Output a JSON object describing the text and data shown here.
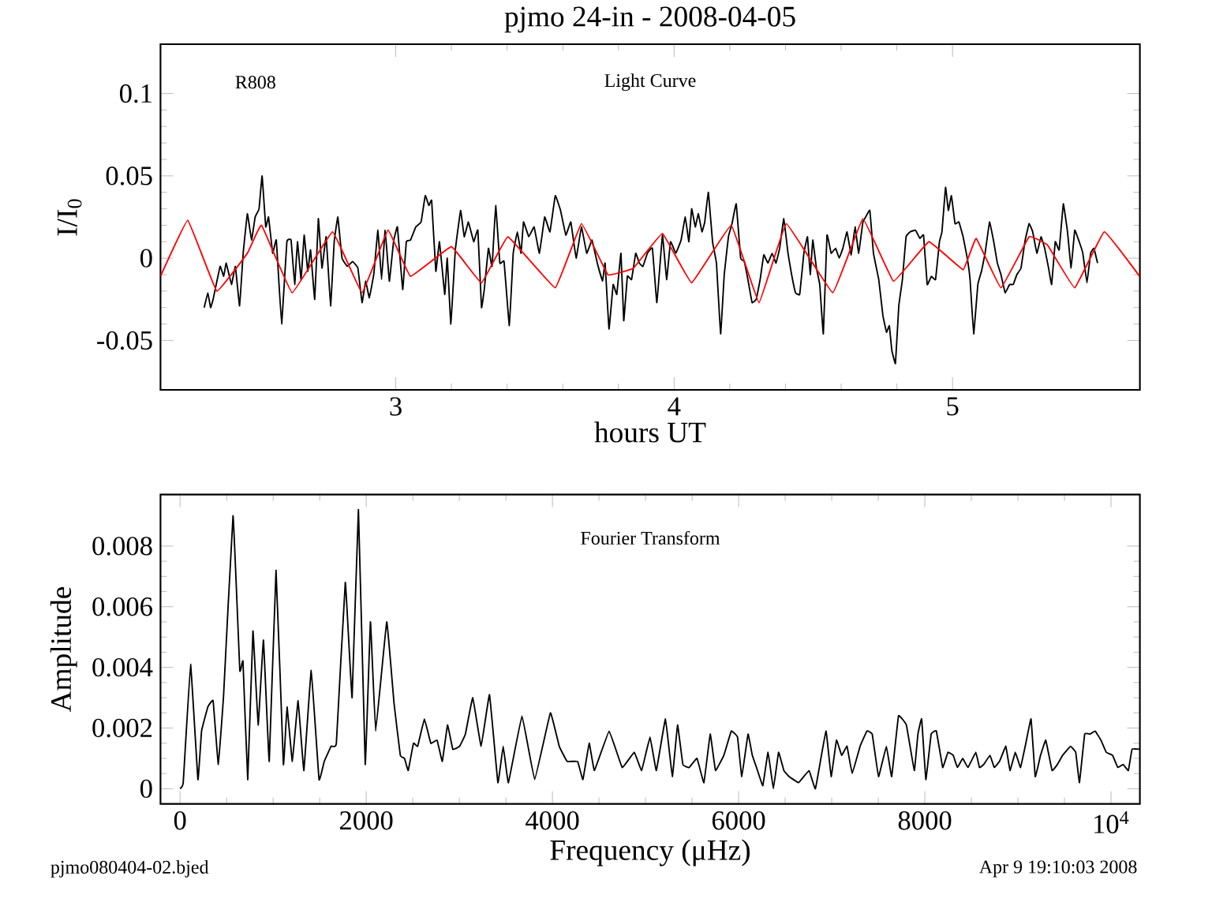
{
  "chart_data": [
    {
      "type": "line",
      "title": "pjmo 24-in - 2008-04-05",
      "xlabel": "hours UT",
      "ylabel": "I/I$_{0}$",
      "xlim": [
        2.155,
        5.673
      ],
      "ylim": [
        -0.08,
        0.13
      ],
      "xticks": [
        3,
        4,
        5
      ],
      "yticks": [
        -0.05,
        0,
        0.05,
        0.1
      ],
      "annotations": [
        "R808",
        "Light Curve"
      ],
      "series": [
        {
          "color": "#000000",
          "x": [
            2.312,
            2.325,
            2.335,
            2.344,
            2.369,
            2.382,
            2.391,
            2.41,
            2.424,
            2.439,
            2.452,
            2.467,
            2.482,
            2.495,
            2.509,
            2.52,
            2.533,
            2.543,
            2.558,
            2.571,
            2.59,
            2.609,
            2.624,
            2.637,
            2.647,
            2.66,
            2.671,
            2.684,
            2.694,
            2.709,
            2.722,
            2.735,
            2.75,
            2.766,
            2.779,
            2.792,
            2.807,
            2.826,
            2.845,
            2.864,
            2.879,
            2.892,
            2.905,
            2.921,
            2.936,
            2.949,
            2.962,
            2.977,
            2.992,
            3.006,
            3.025,
            3.038,
            3.053,
            3.072,
            3.091,
            3.106,
            3.119,
            3.129,
            3.144,
            3.157,
            3.176,
            3.185,
            3.198,
            3.214,
            3.233,
            3.246,
            3.261,
            3.28,
            3.295,
            3.308,
            3.318,
            3.333,
            3.346,
            3.359,
            3.374,
            3.389,
            3.408,
            3.422,
            3.437,
            3.45,
            3.459,
            3.478,
            3.497,
            3.516,
            3.535,
            3.554,
            3.573,
            3.592,
            3.611,
            3.629,
            3.648,
            3.667,
            3.686,
            3.705,
            3.724,
            3.743,
            3.752,
            3.766,
            3.781,
            3.794,
            3.809,
            3.819,
            3.832,
            3.847,
            3.862,
            3.875,
            3.888,
            3.904,
            3.922,
            3.938,
            3.958,
            3.973,
            3.987,
            4.006,
            4.025,
            4.04,
            4.053,
            4.063,
            4.076,
            4.087,
            4.1,
            4.11,
            4.123,
            4.138,
            4.152,
            4.167,
            4.18,
            4.195,
            4.208,
            4.223,
            4.239,
            4.252,
            4.265,
            4.28,
            4.295,
            4.309,
            4.322,
            4.337,
            4.352,
            4.366,
            4.379,
            4.394,
            4.409,
            4.422,
            4.436,
            4.451,
            4.466,
            4.479,
            4.489,
            4.498,
            4.511,
            4.523,
            4.536,
            4.549,
            4.564,
            4.58,
            4.593,
            4.606,
            4.621,
            4.636,
            4.65,
            4.663,
            4.678,
            4.688,
            4.703,
            4.716,
            4.735,
            4.75,
            4.763,
            4.773,
            4.782,
            4.795,
            4.807,
            4.82,
            4.833,
            4.848,
            4.867,
            4.883,
            4.896,
            4.909,
            4.924,
            4.939,
            4.953,
            4.962,
            4.975,
            4.985,
            4.996,
            5.009,
            5.023,
            5.038,
            5.053,
            5.063,
            5.076,
            5.091,
            5.104,
            5.117,
            5.133,
            5.148,
            5.161,
            5.174,
            5.189,
            5.205,
            5.218,
            5.231,
            5.246,
            5.261,
            5.275,
            5.288,
            5.303,
            5.318,
            5.331,
            5.345,
            5.356,
            5.369,
            5.383,
            5.398,
            5.413,
            5.426,
            5.439,
            5.455,
            5.468,
            5.483,
            5.496,
            5.508,
            5.521
          ],
          "values": [
            -0.03,
            -0.021,
            -0.03,
            -0.025,
            -0.005,
            -0.011,
            -0.003,
            -0.016,
            -0.005,
            -0.029,
            0.003,
            0.027,
            0.011,
            0.025,
            0.03,
            0.05,
            0.019,
            0.025,
            0.003,
            0.011,
            -0.04,
            0.01,
            0.011,
            -0.016,
            0.01,
            -0.013,
            0.014,
            -0.008,
            0.005,
            -0.025,
            0.024,
            -0.006,
            0.013,
            -0.029,
            0.01,
            0.025,
            0,
            -0.005,
            -0.002,
            -0.006,
            -0.027,
            -0.014,
            -0.024,
            -0.01,
            0.017,
            -0.013,
            0.017,
            -0.014,
            0.01,
            0.019,
            -0.019,
            0.01,
            0.011,
            0.019,
            0.022,
            0.038,
            0.032,
            0.035,
            -0.008,
            0.01,
            -0.022,
            0,
            -0.04,
            0.005,
            0.029,
            0.013,
            0.022,
            0.01,
            0.017,
            -0.03,
            -0.019,
            0.006,
            -0.005,
            0.032,
            -0.003,
            -0.002,
            -0.041,
            0.003,
            0.016,
            0.003,
            0.022,
            0.013,
            0.019,
            0.003,
            0.025,
            0.016,
            0.038,
            0.029,
            0.014,
            0.022,
            0,
            0.019,
            0.003,
            0.011,
            -0.003,
            -0.014,
            -0.003,
            -0.043,
            -0.016,
            -0.022,
            0.003,
            -0.038,
            -0.011,
            -0.013,
            0.003,
            -0.003,
            -0.005,
            0.003,
            0.006,
            -0.027,
            0.014,
            -0.013,
            0.01,
            0.003,
            0.011,
            0.025,
            0.01,
            0.03,
            0.019,
            0.027,
            0.016,
            0.022,
            0.04,
            0.01,
            -0.003,
            -0.046,
            -0.01,
            0.013,
            0.021,
            0.033,
            0,
            -0.002,
            -0.013,
            -0.027,
            -0.025,
            -0.013,
            0.002,
            -0.003,
            0.003,
            -0.003,
            0.006,
            0.024,
            0.003,
            -0.01,
            -0.021,
            -0.022,
            0.003,
            0.013,
            -0.01,
            0.011,
            -0.006,
            -0.016,
            -0.046,
            0.014,
            0.003,
            0.006,
            0,
            0.006,
            0.016,
            0.002,
            0.019,
            0.003,
            0.022,
            0.025,
            0.029,
            0.003,
            -0.013,
            -0.035,
            -0.045,
            -0.041,
            -0.056,
            -0.064,
            -0.029,
            -0.013,
            0.013,
            0.016,
            0.017,
            0.012,
            0.014,
            -0.016,
            -0.011,
            -0.013,
            0.01,
            0.016,
            0.043,
            0.029,
            0.038,
            0.021,
            0.022,
            0.013,
            0,
            -0.013,
            -0.046,
            -0.016,
            -0.008,
            0.003,
            0.022,
            0.01,
            -0.003,
            -0.01,
            -0.021,
            -0.016,
            -0.016,
            -0.01,
            -0.006,
            0.011,
            0.021,
            0.016,
            0.003,
            0.013,
            0.006,
            -0.006,
            -0.016,
            0.01,
            0.005,
            0.033,
            0.016,
            -0.006,
            0.017,
            0.01,
            0.003,
            -0.015,
            0.003,
            0.006,
            -0.003
          ]
        },
        {
          "color": "#ff0000",
          "x": [
            2.155,
            2.253,
            2.357,
            2.467,
            2.518,
            2.628,
            2.773,
            2.879,
            2.972,
            3.053,
            3.2,
            3.308,
            3.403,
            3.573,
            3.667,
            3.762,
            3.854,
            3.958,
            4.063,
            4.205,
            4.305,
            4.403,
            4.57,
            4.678,
            4.788,
            4.915,
            5.038,
            5.085,
            5.174,
            5.275,
            5.341,
            5.439,
            5.545,
            5.672
          ],
          "values": [
            -0.011,
            0.023,
            -0.02,
            0.003,
            0.02,
            -0.021,
            0.016,
            -0.021,
            0.017,
            -0.011,
            0.007,
            -0.015,
            0.013,
            -0.018,
            0.021,
            -0.01,
            -0.006,
            0.015,
            -0.015,
            0.02,
            -0.027,
            0.021,
            -0.021,
            0.024,
            -0.014,
            0.01,
            -0.007,
            0.012,
            -0.018,
            0.013,
            0.008,
            -0.018,
            0.016,
            -0.011
          ]
        }
      ]
    },
    {
      "type": "line",
      "xlabel": "Frequency (μHz)",
      "ylabel": "Amplitude",
      "xlim": [
        -210,
        10310
      ],
      "ylim": [
        -0.0005,
        0.0097
      ],
      "xticks": [
        0,
        2000,
        4000,
        6000,
        8000,
        {
          "value": 10000,
          "label": "10$^{4}$"
        }
      ],
      "yticks": [
        0,
        0.002,
        0.004,
        0.006,
        0.008
      ],
      "annotations": [
        "Fourier Transform",
        "pjmo080404-02.bjed",
        "Apr  9 19:10:03 2008"
      ],
      "series": [
        {
          "color": "#000000",
          "x": [
            0,
            34,
            113,
            192,
            231,
            299,
            355,
            411,
            468,
            569,
            642,
            676,
            727,
            783,
            839,
            896,
            958,
            1031,
            1110,
            1149,
            1206,
            1268,
            1330,
            1409,
            1493,
            1549,
            1623,
            1679,
            1775,
            1848,
            1916,
            1989,
            2045,
            2101,
            2220,
            2299,
            2366,
            2411,
            2451,
            2507,
            2552,
            2625,
            2693,
            2761,
            2817,
            2873,
            2930,
            3003,
            3065,
            3144,
            3234,
            3324,
            3414,
            3471,
            3527,
            3673,
            3809,
            3978,
            4073,
            4158,
            4271,
            4327,
            4395,
            4451,
            4609,
            4749,
            4879,
            4958,
            5048,
            5116,
            5214,
            5288,
            5344,
            5401,
            5469,
            5553,
            5627,
            5695,
            5751,
            5841,
            5921,
            5988,
            6034,
            6101,
            6147,
            6203,
            6260,
            6316,
            6373,
            6429,
            6486,
            6542,
            6644,
            6757,
            6825,
            6938,
            6994,
            7051,
            7107,
            7164,
            7220,
            7305,
            7378,
            7435,
            7503,
            7587,
            7644,
            7717,
            7802,
            7887,
            7926,
            7966,
            8011,
            8068,
            8124,
            8192,
            8248,
            8305,
            8350,
            8407,
            8463,
            8548,
            8587,
            8633,
            8700,
            8746,
            8802,
            8870,
            8915,
            8972,
            9028,
            9085,
            9141,
            9186,
            9243,
            9299,
            9367,
            9424,
            9480,
            9565,
            9621,
            9661,
            9717,
            9774,
            9830,
            9892,
            9949,
            10017,
            10073,
            10130,
            10186,
            10226,
            10310
          ],
          "values": [
            0,
            0.0002,
            0.0041,
            0.0003,
            0.0019,
            0.0027,
            0.0029,
            0.0008,
            0.0031,
            0.009,
            0.0039,
            0.0042,
            0.0003,
            0.0052,
            0.0021,
            0.0049,
            0.0009,
            0.0072,
            0.0008,
            0.0027,
            0.0009,
            0.0029,
            0.0006,
            0.0039,
            0.0003,
            0.0009,
            0.0014,
            0.0015,
            0.0068,
            0.003,
            0.0092,
            0.0008,
            0.0055,
            0.0019,
            0.0055,
            0.0028,
            0.0011,
            0.001,
            0.0006,
            0.0015,
            0.0014,
            0.0023,
            0.0015,
            0.0016,
            0.0009,
            0.0021,
            0.0013,
            0.0014,
            0.0018,
            0.003,
            0.0014,
            0.0031,
            0.0002,
            0.0014,
            0.0002,
            0.0024,
            0.0003,
            0.0025,
            0.0014,
            0.0009,
            0.0009,
            0.0003,
            0.0015,
            0.0006,
            0.0019,
            0.0007,
            0.0012,
            0.0006,
            0.0017,
            0.0006,
            0.0023,
            0.0004,
            0.0021,
            0.0008,
            0.0007,
            0.001,
            0.0002,
            0.0018,
            0.0006,
            0.0011,
            0.0019,
            0.0017,
            0.0004,
            0.0018,
            0.0011,
            0.0006,
            0.0001,
            0.0012,
            0,
            0.0012,
            0.0006,
            0.0004,
            0.0002,
            0.0006,
            0,
            0.0019,
            0.0004,
            0.0016,
            0.0011,
            0.0014,
            0.0005,
            0.0014,
            0.0019,
            0.0018,
            0.0004,
            0.0014,
            0.0004,
            0.0024,
            0.0021,
            0.0006,
            0.0018,
            0.0023,
            0.0003,
            0.0018,
            0.0019,
            0.0007,
            0.0012,
            0.0011,
            0.0007,
            0.001,
            0.0007,
            0.0012,
            0.0007,
            0.0008,
            0.0011,
            0.0007,
            0.0009,
            0.0014,
            0.0006,
            0.0012,
            0.0007,
            0.0015,
            0.0023,
            0.0004,
            0.0011,
            0.0016,
            0.0006,
            0.0008,
            0.0011,
            0.0014,
            0.0012,
            0.0002,
            0.0018,
            0.0018,
            0.0019,
            0.0016,
            0.0012,
            0.0011,
            0.0007,
            0.0008,
            0.0006,
            0.0013,
            0.0013
          ]
        }
      ]
    }
  ]
}
